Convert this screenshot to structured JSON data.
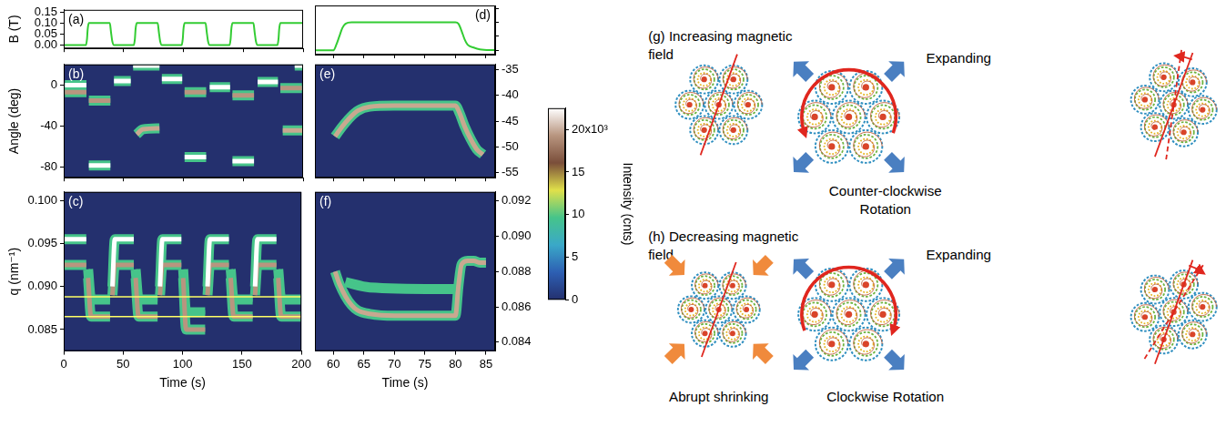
{
  "chart_data": [
    {
      "label": "(a)",
      "type": "line",
      "y_label": "B (T)",
      "xlim": [
        0,
        200
      ],
      "xticks": [
        0,
        50,
        100,
        150,
        200
      ],
      "ylim": [
        -0.015,
        0.16
      ],
      "yticks": [
        {
          "value": 0,
          "label": "0.00"
        },
        0.05,
        {
          "value": 0.1,
          "label": "0.10"
        },
        0.15
      ],
      "tick_labels": "y",
      "series": [
        {
          "color": "#33cc33",
          "x": [
            0,
            18.5,
            19.5,
            20,
            21,
            38.5,
            39.5,
            40.5,
            42,
            58.5,
            59.5,
            60,
            61,
            78.5,
            79.5,
            80.5,
            82,
            98.5,
            99.5,
            100,
            101,
            118.5,
            119.5,
            120.5,
            122,
            138.5,
            139.5,
            140,
            141,
            158.5,
            159.5,
            160.5,
            162,
            178.5,
            179.5,
            180,
            181,
            200
          ],
          "values": [
            0,
            0,
            0.03,
            0.07,
            0.1,
            0.1,
            0.06,
            0.02,
            0,
            0,
            0.03,
            0.07,
            0.1,
            0.1,
            0.06,
            0.02,
            0,
            0,
            0.03,
            0.07,
            0.1,
            0.1,
            0.06,
            0.02,
            0,
            0,
            0.03,
            0.07,
            0.1,
            0.1,
            0.06,
            0.02,
            0,
            0,
            0.03,
            0.07,
            0.1,
            0.1
          ]
        }
      ]
    },
    {
      "label": "(b)",
      "type": "heatmap",
      "y_label": "Angle (deg)",
      "xlim": [
        0,
        200
      ],
      "xticks": [
        0,
        50,
        100,
        150,
        200
      ],
      "ylim": [
        -90,
        20
      ],
      "yticks": [
        -80,
        -40,
        0
      ],
      "tick_labels": "y",
      "series": [
        {
          "color": "#ffffff",
          "x": [
            1,
            19
          ],
          "values": [
            0,
            0
          ]
        },
        {
          "color": "#b8957f",
          "x": [
            1,
            19
          ],
          "values": [
            -7,
            -7
          ]
        },
        {
          "color": "#b8957f",
          "x": [
            21,
            39
          ],
          "values": [
            -15,
            -15
          ]
        },
        {
          "color": "#ffffff",
          "x": [
            21,
            39
          ],
          "values": [
            -78,
            -78
          ]
        },
        {
          "color": "#ffffff",
          "x": [
            42,
            56
          ],
          "values": [
            4,
            4
          ]
        },
        {
          "color": "#ffffff",
          "x": [
            58,
            80
          ],
          "values": [
            19,
            19
          ]
        },
        {
          "color": "#c8a890",
          "x": [
            61,
            66,
            80
          ],
          "values": [
            -48,
            -43,
            -42
          ]
        },
        {
          "color": "#ffffff",
          "x": [
            82,
            99
          ],
          "values": [
            6,
            6
          ]
        },
        {
          "color": "#b8957f",
          "x": [
            101,
            119
          ],
          "values": [
            -7,
            -7
          ]
        },
        {
          "color": "#ffffff",
          "x": [
            101,
            119
          ],
          "values": [
            -70,
            -70
          ]
        },
        {
          "color": "#ffffff",
          "x": [
            122,
            139
          ],
          "values": [
            -2,
            -2
          ]
        },
        {
          "color": "#b8957f",
          "x": [
            141,
            159
          ],
          "values": [
            -10,
            -10
          ]
        },
        {
          "color": "#ffffff",
          "x": [
            141,
            159
          ],
          "values": [
            -74,
            -74
          ]
        },
        {
          "color": "#ffffff",
          "x": [
            162,
            179
          ],
          "values": [
            3,
            3
          ]
        },
        {
          "color": "#b8957f",
          "x": [
            181,
            199
          ],
          "values": [
            -3,
            -3
          ]
        },
        {
          "color": "#c8a890",
          "x": [
            183,
            200
          ],
          "values": [
            -44,
            -44
          ]
        },
        {
          "color": "#ffffff",
          "x": [
            193,
            200
          ],
          "values": [
            19,
            19
          ]
        }
      ]
    },
    {
      "label": "(c)",
      "type": "heatmap",
      "y_label": "q (nm⁻¹)",
      "x_label": "Time (s)",
      "xlim": [
        0,
        200
      ],
      "xticks": [
        0,
        50,
        100,
        150,
        200
      ],
      "ylim": [
        0.0825,
        0.101
      ],
      "yticks": [
        0.085,
        {
          "value": 0.09,
          "label": "0.090"
        },
        0.095,
        {
          "value": 0.1,
          "label": "0.100"
        }
      ],
      "series": [
        {
          "color": "#ffffff",
          "x": [
            0,
            19
          ],
          "values": [
            0.0955,
            0.0955
          ]
        },
        {
          "color": "#b8957f",
          "x": [
            0,
            19
          ],
          "values": [
            0.0925,
            0.0925
          ]
        },
        {
          "color": "#ffffff",
          "x": [
            41,
            43,
            59
          ],
          "values": [
            0.09,
            0.0955,
            0.0955
          ]
        },
        {
          "color": "#b8957f",
          "x": [
            41,
            43,
            59
          ],
          "values": [
            0.089,
            0.0925,
            0.0925
          ]
        },
        {
          "color": "#ffffff",
          "x": [
            81,
            83,
            99
          ],
          "values": [
            0.09,
            0.0955,
            0.0955
          ]
        },
        {
          "color": "#b8957f",
          "x": [
            81,
            83,
            99
          ],
          "values": [
            0.089,
            0.0925,
            0.0925
          ]
        },
        {
          "color": "#ffffff",
          "x": [
            121,
            123,
            139
          ],
          "values": [
            0.09,
            0.0955,
            0.0955
          ]
        },
        {
          "color": "#b8957f",
          "x": [
            121,
            123,
            139
          ],
          "values": [
            0.089,
            0.0925,
            0.0925
          ]
        },
        {
          "color": "#ffffff",
          "x": [
            161,
            163,
            179
          ],
          "values": [
            0.09,
            0.0955,
            0.0955
          ]
        },
        {
          "color": "#b8957f",
          "x": [
            161,
            163,
            179
          ],
          "values": [
            0.089,
            0.0925,
            0.0925
          ]
        },
        {
          "color": "#b8957f",
          "x": [
            20.5,
            23,
            39
          ],
          "values": [
            0.091,
            0.0865,
            0.0865
          ]
        },
        {
          "color": "#46c48a",
          "x": [
            20.5,
            23,
            39
          ],
          "values": [
            0.092,
            0.0885,
            0.0885
          ]
        },
        {
          "color": "#b8957f",
          "x": [
            60.5,
            63,
            79
          ],
          "values": [
            0.091,
            0.0865,
            0.0865
          ]
        },
        {
          "color": "#46c48a",
          "x": [
            60.5,
            63,
            79
          ],
          "values": [
            0.092,
            0.0885,
            0.0885
          ]
        },
        {
          "color": "#b8957f",
          "x": [
            100.5,
            103,
            119
          ],
          "values": [
            0.091,
            0.085,
            0.085
          ]
        },
        {
          "color": "#46c48a",
          "x": [
            100.5,
            103,
            119
          ],
          "values": [
            0.092,
            0.087,
            0.087
          ]
        },
        {
          "color": "#b8957f",
          "x": [
            140.5,
            143,
            159
          ],
          "values": [
            0.091,
            0.0865,
            0.0865
          ]
        },
        {
          "color": "#46c48a",
          "x": [
            140.5,
            143,
            159
          ],
          "values": [
            0.092,
            0.0885,
            0.0885
          ]
        },
        {
          "color": "#b8957f",
          "x": [
            180.5,
            183,
            200
          ],
          "values": [
            0.091,
            0.0865,
            0.0865
          ]
        },
        {
          "color": "#46c48a",
          "x": [
            180.5,
            183,
            200
          ],
          "values": [
            0.092,
            0.0885,
            0.0885
          ]
        },
        {
          "type": "line",
          "color": "#ffff66",
          "x": [
            0,
            200
          ],
          "values": [
            0.0865,
            0.0865
          ]
        },
        {
          "type": "line",
          "color": "#ffff66",
          "x": [
            0,
            200
          ],
          "values": [
            0.0888,
            0.0888
          ]
        }
      ]
    },
    {
      "label": "(d)",
      "type": "line",
      "xlim": [
        57,
        86.5
      ],
      "xticks": [
        60,
        65,
        70,
        75,
        80,
        85
      ],
      "ylim": [
        -0.015,
        0.16
      ],
      "yticks": [
        0,
        0.05,
        0.1,
        0.15
      ],
      "tick_labels": false,
      "series": [
        {
          "color": "#33cc33",
          "x": [
            57,
            60,
            60.5,
            61,
            61.5,
            62,
            63,
            80,
            80.5,
            81,
            81.5,
            82,
            83,
            84,
            86.5
          ],
          "values": [
            0,
            0,
            0.02,
            0.05,
            0.08,
            0.095,
            0.1,
            0.1,
            0.095,
            0.07,
            0.04,
            0.02,
            0.01,
            0.004,
            0.001
          ]
        }
      ]
    },
    {
      "label": "(e)",
      "type": "heatmap",
      "xlim": [
        57,
        86.5
      ],
      "xticks": [
        60,
        65,
        70,
        75,
        80,
        85
      ],
      "ylim": [
        -56,
        -34
      ],
      "yticks": [
        -55,
        -50,
        -45,
        -40,
        -35
      ],
      "tick_labels": "y",
      "series": [
        {
          "color": "#c8a890",
          "x": [
            60.3,
            61,
            62,
            63,
            64,
            66,
            70,
            75,
            80,
            80.7,
            81.5,
            82.5,
            83.5,
            84.5
          ],
          "values": [
            -48,
            -46.8,
            -45.3,
            -44,
            -43,
            -42.2,
            -42,
            -42,
            -42,
            -43.5,
            -46,
            -48.5,
            -50.5,
            -51.5
          ]
        }
      ]
    },
    {
      "label": "(f)",
      "type": "heatmap",
      "x_label": "Time (s)",
      "xlim": [
        57,
        86.5
      ],
      "xticks": [
        60,
        65,
        70,
        75,
        80,
        85
      ],
      "ylim": [
        0.0835,
        0.0925
      ],
      "yticks": [
        0.084,
        0.086,
        0.088,
        {
          "value": 0.09,
          "label": "0.090"
        },
        0.092
      ],
      "series": [
        {
          "color": "#46c48a",
          "x": [
            62,
            66,
            80
          ],
          "values": [
            0.0874,
            0.0871,
            0.087
          ]
        },
        {
          "color": "#c8a890",
          "x": [
            60.3,
            61,
            62,
            63,
            64,
            66,
            70,
            75,
            80,
            80.5,
            81,
            82,
            83,
            84,
            85
          ],
          "values": [
            0.088,
            0.0873,
            0.0866,
            0.0861,
            0.0858,
            0.0856,
            0.0855,
            0.0855,
            0.0855,
            0.0872,
            0.0884,
            0.0886,
            0.0886,
            0.0885,
            0.0885
          ]
        }
      ]
    }
  ],
  "colorbar": {
    "label": "Intensity (cnts)",
    "range": [
      0,
      22500
    ],
    "ticks": [
      0,
      {
        "value": 5000,
        "label": "5"
      },
      {
        "value": 10000,
        "label": "10"
      },
      {
        "value": 15000,
        "label": "15"
      },
      {
        "value": 20000,
        "label": "20x10³"
      }
    ],
    "colors": [
      "#24306e",
      "#2d5fb3",
      "#3aa8c8",
      "#46c48a",
      "#e0e04a",
      "#7a4e3a",
      "#b8957f",
      "#ffffff"
    ]
  },
  "diagrams": [
    {
      "title": "(g) Increasing magnetic field",
      "labels": [
        "Expanding",
        "Counter-clockwise Rotation"
      ]
    },
    {
      "title": "(h) Decreasing magnetic field",
      "labels": [
        "Abrupt shrinking",
        "Expanding",
        "Clockwise Rotation"
      ]
    }
  ]
}
